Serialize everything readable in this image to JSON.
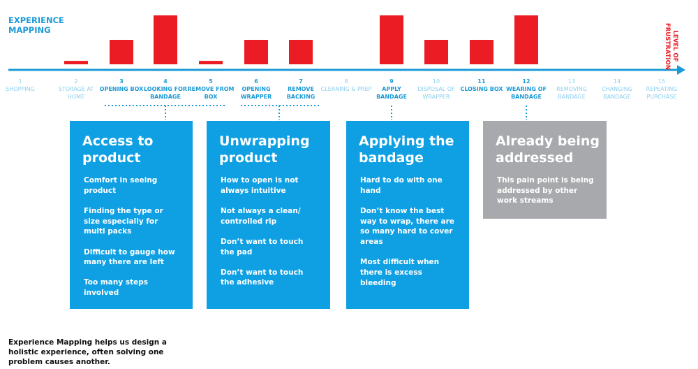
{
  "header": {
    "title": "EXPERIENCE MAPPING",
    "axis_label": "LEVEL OF FRUSTRATION"
  },
  "chart_data": {
    "type": "bar",
    "steps": [
      1,
      2,
      3,
      4,
      5,
      6,
      7,
      8,
      9,
      10,
      11,
      12,
      13,
      14,
      15
    ],
    "categories": [
      "SHOPPING",
      "STORAGE AT HOME",
      "OPENING BOX",
      "LOOKING FOR BANDAGE",
      "REMOVE FROM BOX",
      "OPENING WRAPPER",
      "REMOVE BACKING",
      "CLEANING & PREP",
      "APPLY BANDAGE",
      "DISPOSAL OF WRAPPER",
      "CLOSING BOX",
      "WEARING OF BANDAGE",
      "REMOVING BANDAGE",
      "CHANGING BANDAGE",
      "REPEATING PURCHASE"
    ],
    "values": [
      0,
      0.7,
      5,
      10,
      0.7,
      5,
      5,
      0,
      10,
      5,
      5,
      10,
      0,
      0,
      0
    ],
    "emphasized": [
      false,
      false,
      true,
      true,
      true,
      true,
      true,
      false,
      true,
      false,
      true,
      true,
      false,
      false,
      false
    ],
    "ylim": [
      0,
      10
    ],
    "color": "#ec1c24",
    "label_color": "#1b9ad6",
    "muted_label_color": "#8dcfee"
  },
  "cards": [
    {
      "title": "Access to product",
      "color": "#0fa0e3",
      "items": [
        "Comfort in seeing product",
        "Finding the type or size especially for multi packs",
        "Difficult to gauge how many there are left",
        "Too many steps involved"
      ]
    },
    {
      "title": "Unwrapping product",
      "color": "#0fa0e3",
      "items": [
        "How to open is not always intuitive",
        "Not always a clean/ controlled rip",
        "Don’t want to touch the pad",
        "Don’t want to touch the adhesive"
      ]
    },
    {
      "title": "Applying the bandage",
      "color": "#0fa0e3",
      "items": [
        "Hard to do with one hand",
        "Don’t know the best way to wrap, there are so many hard to cover areas",
        "Most difficult when there is excess bleeding"
      ]
    },
    {
      "title": "Already being addressed",
      "color": "#a7a9ac",
      "items": [
        "This pain point is being addressed by other work streams"
      ]
    }
  ],
  "footer": "Experience Mapping helps us design a holistic experience, often solving one problem causes another."
}
